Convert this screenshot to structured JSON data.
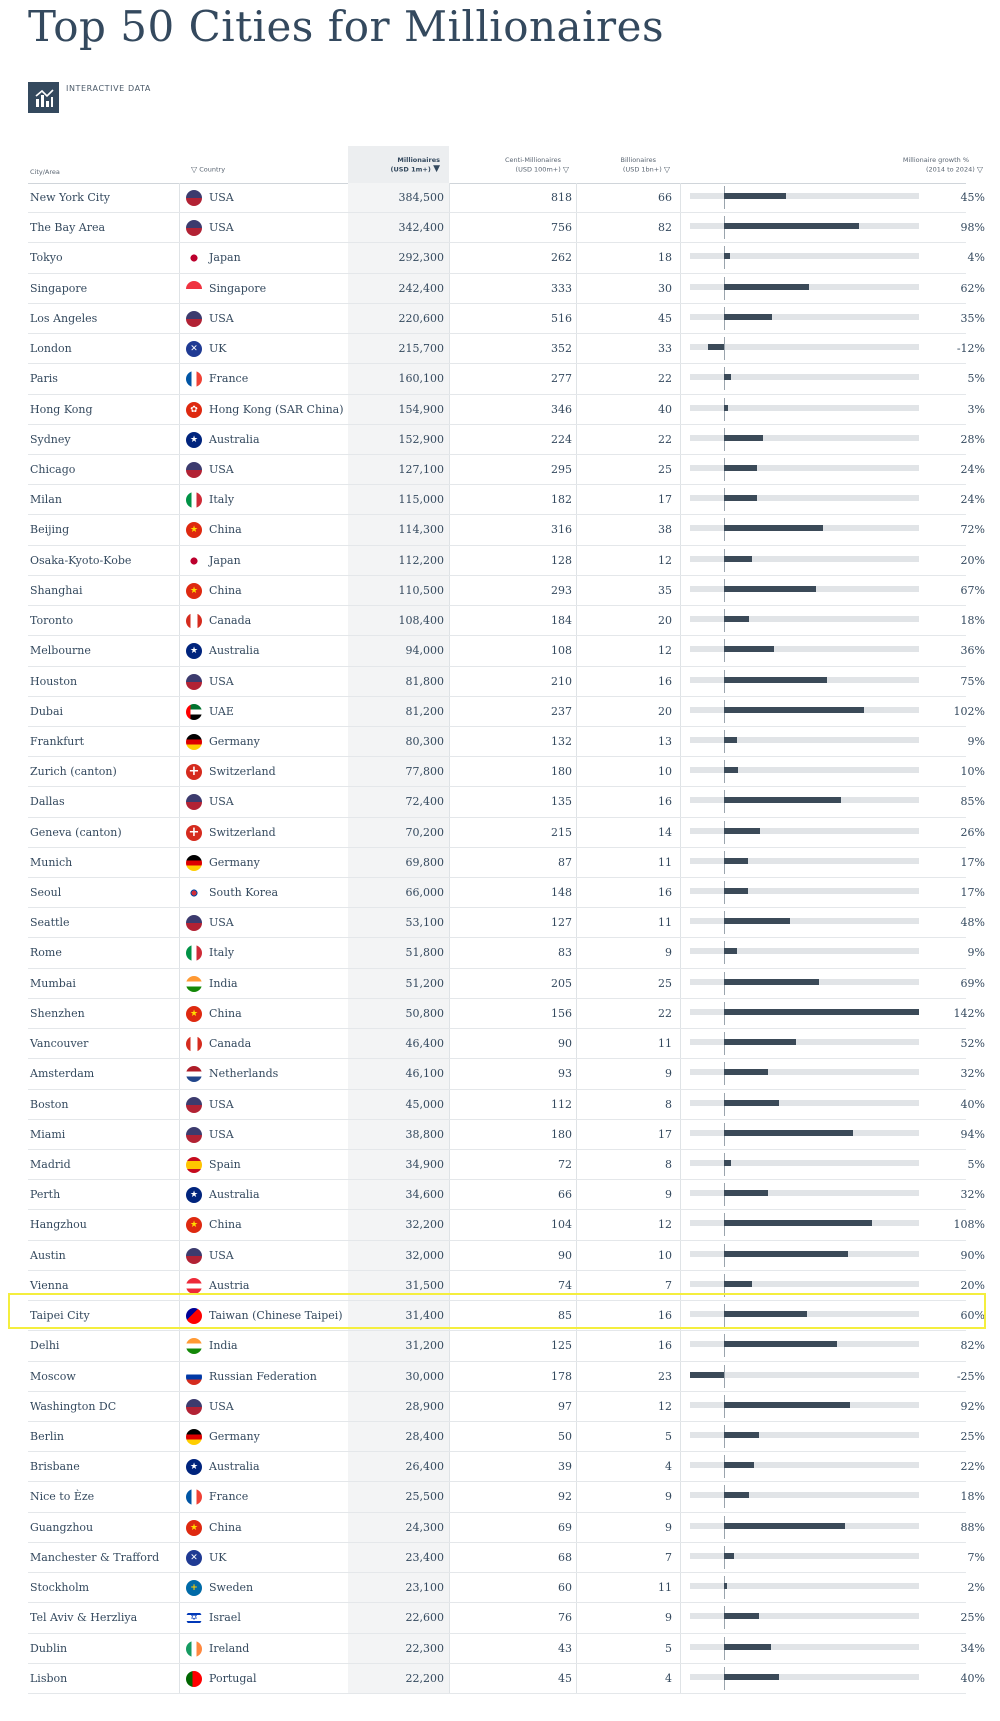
{
  "page": {
    "title": "Top 50 Cities for Millionaires",
    "badge_label": "INTERACTIVE DATA",
    "badge_icon": "bar-chart-icon"
  },
  "columns": {
    "city": "City/Area",
    "country": "Country",
    "millionaires_line1": "Millionaires",
    "millionaires_line2": "(USD 1m+)",
    "centi_line1": "Centi-Millionaires",
    "centi_line2": "(USD 100m+)",
    "bill_line1": "Billionaires",
    "bill_line2": "(USD 1bn+)",
    "growth_line1": "Millionaire growth %",
    "growth_line2": "(2014 to 2024)"
  },
  "highlight_city": "Taipei City",
  "chart_data": {
    "type": "table",
    "growth_axis_range": [
      -25,
      142
    ],
    "rows": [
      {
        "city": "New York City",
        "country": "USA",
        "flag": "us",
        "millionaires": "384,500",
        "centi": "818",
        "billionaires": "66",
        "growth": 45
      },
      {
        "city": "The Bay Area",
        "country": "USA",
        "flag": "us",
        "millionaires": "342,400",
        "centi": "756",
        "billionaires": "82",
        "growth": 98
      },
      {
        "city": "Tokyo",
        "country": "Japan",
        "flag": "jp",
        "millionaires": "292,300",
        "centi": "262",
        "billionaires": "18",
        "growth": 4
      },
      {
        "city": "Singapore",
        "country": "Singapore",
        "flag": "sg",
        "millionaires": "242,400",
        "centi": "333",
        "billionaires": "30",
        "growth": 62
      },
      {
        "city": "Los Angeles",
        "country": "USA",
        "flag": "us",
        "millionaires": "220,600",
        "centi": "516",
        "billionaires": "45",
        "growth": 35
      },
      {
        "city": "London",
        "country": "UK",
        "flag": "uk",
        "millionaires": "215,700",
        "centi": "352",
        "billionaires": "33",
        "growth": -12
      },
      {
        "city": "Paris",
        "country": "France",
        "flag": "fr",
        "millionaires": "160,100",
        "centi": "277",
        "billionaires": "22",
        "growth": 5
      },
      {
        "city": "Hong Kong",
        "country": "Hong Kong (SAR China)",
        "flag": "hk",
        "millionaires": "154,900",
        "centi": "346",
        "billionaires": "40",
        "growth": 3
      },
      {
        "city": "Sydney",
        "country": "Australia",
        "flag": "au",
        "millionaires": "152,900",
        "centi": "224",
        "billionaires": "22",
        "growth": 28
      },
      {
        "city": "Chicago",
        "country": "USA",
        "flag": "us",
        "millionaires": "127,100",
        "centi": "295",
        "billionaires": "25",
        "growth": 24
      },
      {
        "city": "Milan",
        "country": "Italy",
        "flag": "it",
        "millionaires": "115,000",
        "centi": "182",
        "billionaires": "17",
        "growth": 24
      },
      {
        "city": "Beijing",
        "country": "China",
        "flag": "cn",
        "millionaires": "114,300",
        "centi": "316",
        "billionaires": "38",
        "growth": 72
      },
      {
        "city": "Osaka-Kyoto-Kobe",
        "country": "Japan",
        "flag": "jp",
        "millionaires": "112,200",
        "centi": "128",
        "billionaires": "12",
        "growth": 20
      },
      {
        "city": "Shanghai",
        "country": "China",
        "flag": "cn",
        "millionaires": "110,500",
        "centi": "293",
        "billionaires": "35",
        "growth": 67
      },
      {
        "city": "Toronto",
        "country": "Canada",
        "flag": "ca",
        "millionaires": "108,400",
        "centi": "184",
        "billionaires": "20",
        "growth": 18
      },
      {
        "city": "Melbourne",
        "country": "Australia",
        "flag": "au",
        "millionaires": "94,000",
        "centi": "108",
        "billionaires": "12",
        "growth": 36
      },
      {
        "city": "Houston",
        "country": "USA",
        "flag": "us",
        "millionaires": "81,800",
        "centi": "210",
        "billionaires": "16",
        "growth": 75
      },
      {
        "city": "Dubai",
        "country": "UAE",
        "flag": "ae",
        "millionaires": "81,200",
        "centi": "237",
        "billionaires": "20",
        "growth": 102
      },
      {
        "city": "Frankfurt",
        "country": "Germany",
        "flag": "de",
        "millionaires": "80,300",
        "centi": "132",
        "billionaires": "13",
        "growth": 9
      },
      {
        "city": "Zurich (canton)",
        "country": "Switzerland",
        "flag": "ch",
        "millionaires": "77,800",
        "centi": "180",
        "billionaires": "10",
        "growth": 10
      },
      {
        "city": "Dallas",
        "country": "USA",
        "flag": "us",
        "millionaires": "72,400",
        "centi": "135",
        "billionaires": "16",
        "growth": 85
      },
      {
        "city": "Geneva (canton)",
        "country": "Switzerland",
        "flag": "ch",
        "millionaires": "70,200",
        "centi": "215",
        "billionaires": "14",
        "growth": 26
      },
      {
        "city": "Munich",
        "country": "Germany",
        "flag": "de",
        "millionaires": "69,800",
        "centi": "87",
        "billionaires": "11",
        "growth": 17
      },
      {
        "city": "Seoul",
        "country": "South Korea",
        "flag": "kr",
        "millionaires": "66,000",
        "centi": "148",
        "billionaires": "16",
        "growth": 17
      },
      {
        "city": "Seattle",
        "country": "USA",
        "flag": "us",
        "millionaires": "53,100",
        "centi": "127",
        "billionaires": "11",
        "growth": 48
      },
      {
        "city": "Rome",
        "country": "Italy",
        "flag": "it",
        "millionaires": "51,800",
        "centi": "83",
        "billionaires": "9",
        "growth": 9
      },
      {
        "city": "Mumbai",
        "country": "India",
        "flag": "in",
        "millionaires": "51,200",
        "centi": "205",
        "billionaires": "25",
        "growth": 69
      },
      {
        "city": "Shenzhen",
        "country": "China",
        "flag": "cn",
        "millionaires": "50,800",
        "centi": "156",
        "billionaires": "22",
        "growth": 142
      },
      {
        "city": "Vancouver",
        "country": "Canada",
        "flag": "ca",
        "millionaires": "46,400",
        "centi": "90",
        "billionaires": "11",
        "growth": 52
      },
      {
        "city": "Amsterdam",
        "country": "Netherlands",
        "flag": "nl",
        "millionaires": "46,100",
        "centi": "93",
        "billionaires": "9",
        "growth": 32
      },
      {
        "city": "Boston",
        "country": "USA",
        "flag": "us",
        "millionaires": "45,000",
        "centi": "112",
        "billionaires": "8",
        "growth": 40
      },
      {
        "city": "Miami",
        "country": "USA",
        "flag": "us",
        "millionaires": "38,800",
        "centi": "180",
        "billionaires": "17",
        "growth": 94
      },
      {
        "city": "Madrid",
        "country": "Spain",
        "flag": "es",
        "millionaires": "34,900",
        "centi": "72",
        "billionaires": "8",
        "growth": 5
      },
      {
        "city": "Perth",
        "country": "Australia",
        "flag": "au",
        "millionaires": "34,600",
        "centi": "66",
        "billionaires": "9",
        "growth": 32
      },
      {
        "city": "Hangzhou",
        "country": "China",
        "flag": "cn",
        "millionaires": "32,200",
        "centi": "104",
        "billionaires": "12",
        "growth": 108
      },
      {
        "city": "Austin",
        "country": "USA",
        "flag": "us",
        "millionaires": "32,000",
        "centi": "90",
        "billionaires": "10",
        "growth": 90
      },
      {
        "city": "Vienna",
        "country": "Austria",
        "flag": "at",
        "millionaires": "31,500",
        "centi": "74",
        "billionaires": "7",
        "growth": 20
      },
      {
        "city": "Taipei City",
        "country": "Taiwan (Chinese Taipei)",
        "flag": "tw",
        "millionaires": "31,400",
        "centi": "85",
        "billionaires": "16",
        "growth": 60
      },
      {
        "city": "Delhi",
        "country": "India",
        "flag": "in",
        "millionaires": "31,200",
        "centi": "125",
        "billionaires": "16",
        "growth": 82
      },
      {
        "city": "Moscow",
        "country": "Russian Federation",
        "flag": "ru",
        "millionaires": "30,000",
        "centi": "178",
        "billionaires": "23",
        "growth": -25
      },
      {
        "city": "Washington DC",
        "country": "USA",
        "flag": "us",
        "millionaires": "28,900",
        "centi": "97",
        "billionaires": "12",
        "growth": 92
      },
      {
        "city": "Berlin",
        "country": "Germany",
        "flag": "de",
        "millionaires": "28,400",
        "centi": "50",
        "billionaires": "5",
        "growth": 25
      },
      {
        "city": "Brisbane",
        "country": "Australia",
        "flag": "au",
        "millionaires": "26,400",
        "centi": "39",
        "billionaires": "4",
        "growth": 22
      },
      {
        "city": "Nice to Èze",
        "country": "France",
        "flag": "fr",
        "millionaires": "25,500",
        "centi": "92",
        "billionaires": "9",
        "growth": 18
      },
      {
        "city": "Guangzhou",
        "country": "China",
        "flag": "cn",
        "millionaires": "24,300",
        "centi": "69",
        "billionaires": "9",
        "growth": 88
      },
      {
        "city": "Manchester & Trafford",
        "country": "UK",
        "flag": "uk",
        "millionaires": "23,400",
        "centi": "68",
        "billionaires": "7",
        "growth": 7
      },
      {
        "city": "Stockholm",
        "country": "Sweden",
        "flag": "se",
        "millionaires": "23,100",
        "centi": "60",
        "billionaires": "11",
        "growth": 2
      },
      {
        "city": "Tel Aviv & Herzliya",
        "country": "Israel",
        "flag": "il",
        "millionaires": "22,600",
        "centi": "76",
        "billionaires": "9",
        "growth": 25
      },
      {
        "city": "Dublin",
        "country": "Ireland",
        "flag": "ie",
        "millionaires": "22,300",
        "centi": "43",
        "billionaires": "5",
        "growth": 34
      },
      {
        "city": "Lisbon",
        "country": "Portugal",
        "flag": "pt",
        "millionaires": "22,200",
        "centi": "45",
        "billionaires": "4",
        "growth": 40
      }
    ]
  }
}
